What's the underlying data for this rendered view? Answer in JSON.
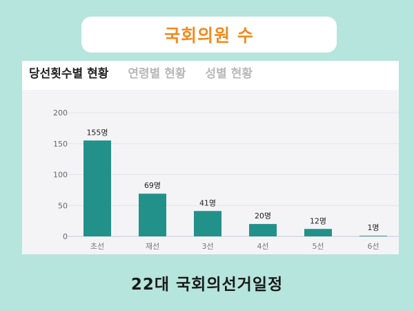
{
  "header": {
    "title": "국회의원 수"
  },
  "tabs": [
    {
      "label": "당선횟수별 현황",
      "active": true
    },
    {
      "label": "연령별 현황",
      "active": false
    },
    {
      "label": "성별 현황",
      "active": false
    }
  ],
  "footer": {
    "text": "22대 국회의선거일정"
  },
  "colors": {
    "bar": "#22918a",
    "title": "#f28b1e",
    "background": "#b5e5dc"
  },
  "chart_data": {
    "type": "bar",
    "categories": [
      "초선",
      "재선",
      "3선",
      "4선",
      "5선",
      "6선"
    ],
    "values": [
      155,
      69,
      41,
      20,
      12,
      1
    ],
    "data_labels": [
      "155명",
      "69명",
      "41명",
      "20명",
      "12명",
      "1명"
    ],
    "yticks": [
      0,
      50,
      100,
      150,
      200
    ],
    "ylim": [
      0,
      200
    ],
    "grid": true
  }
}
